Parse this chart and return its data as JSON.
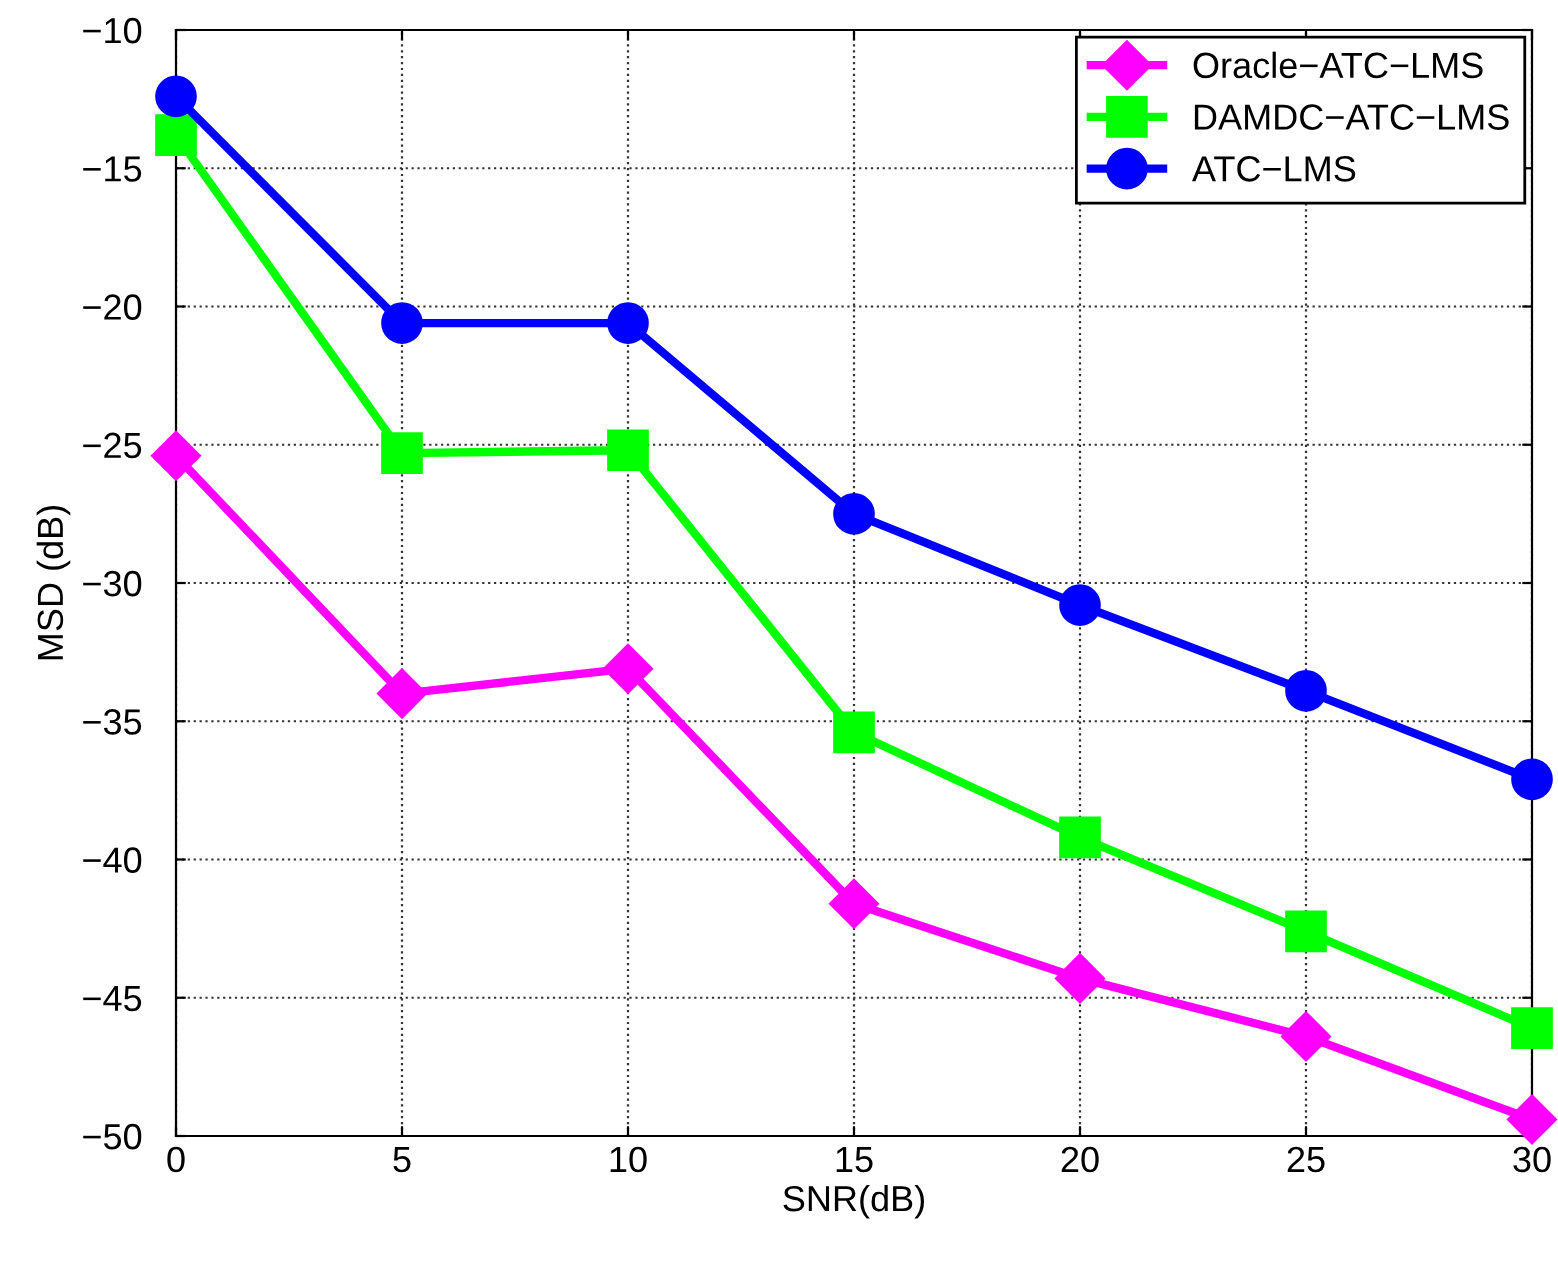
{
  "chart_data": {
    "type": "line",
    "xlabel": "SNR(dB)",
    "ylabel": "MSD (dB)",
    "x": [
      0,
      5,
      10,
      15,
      20,
      25,
      30
    ],
    "series": [
      {
        "name": "Oracle−ATC−LMS",
        "color": "#ff00ff",
        "marker": "diamond",
        "values": [
          -25.4,
          -34.0,
          -33.1,
          -41.6,
          -44.3,
          -46.4,
          -49.4
        ]
      },
      {
        "name": "DAMDC−ATC−LMS",
        "color": "#00ff00",
        "marker": "square",
        "values": [
          -13.8,
          -25.3,
          -25.2,
          -35.4,
          -39.2,
          -42.6,
          -46.1
        ]
      },
      {
        "name": "ATC−LMS",
        "color": "#0000ff",
        "marker": "circle",
        "values": [
          -12.4,
          -20.6,
          -20.6,
          -27.5,
          -30.8,
          -33.9,
          -37.1
        ]
      }
    ],
    "xlim": [
      0,
      30
    ],
    "xticks": [
      0,
      5,
      10,
      15,
      20,
      25,
      30
    ],
    "ylim": [
      -50,
      -10
    ],
    "yticks": [
      -50,
      -45,
      -40,
      -35,
      -30,
      -25,
      -20,
      -15,
      -10
    ],
    "grid": true,
    "legend": "top right",
    "line_style": "solid"
  }
}
